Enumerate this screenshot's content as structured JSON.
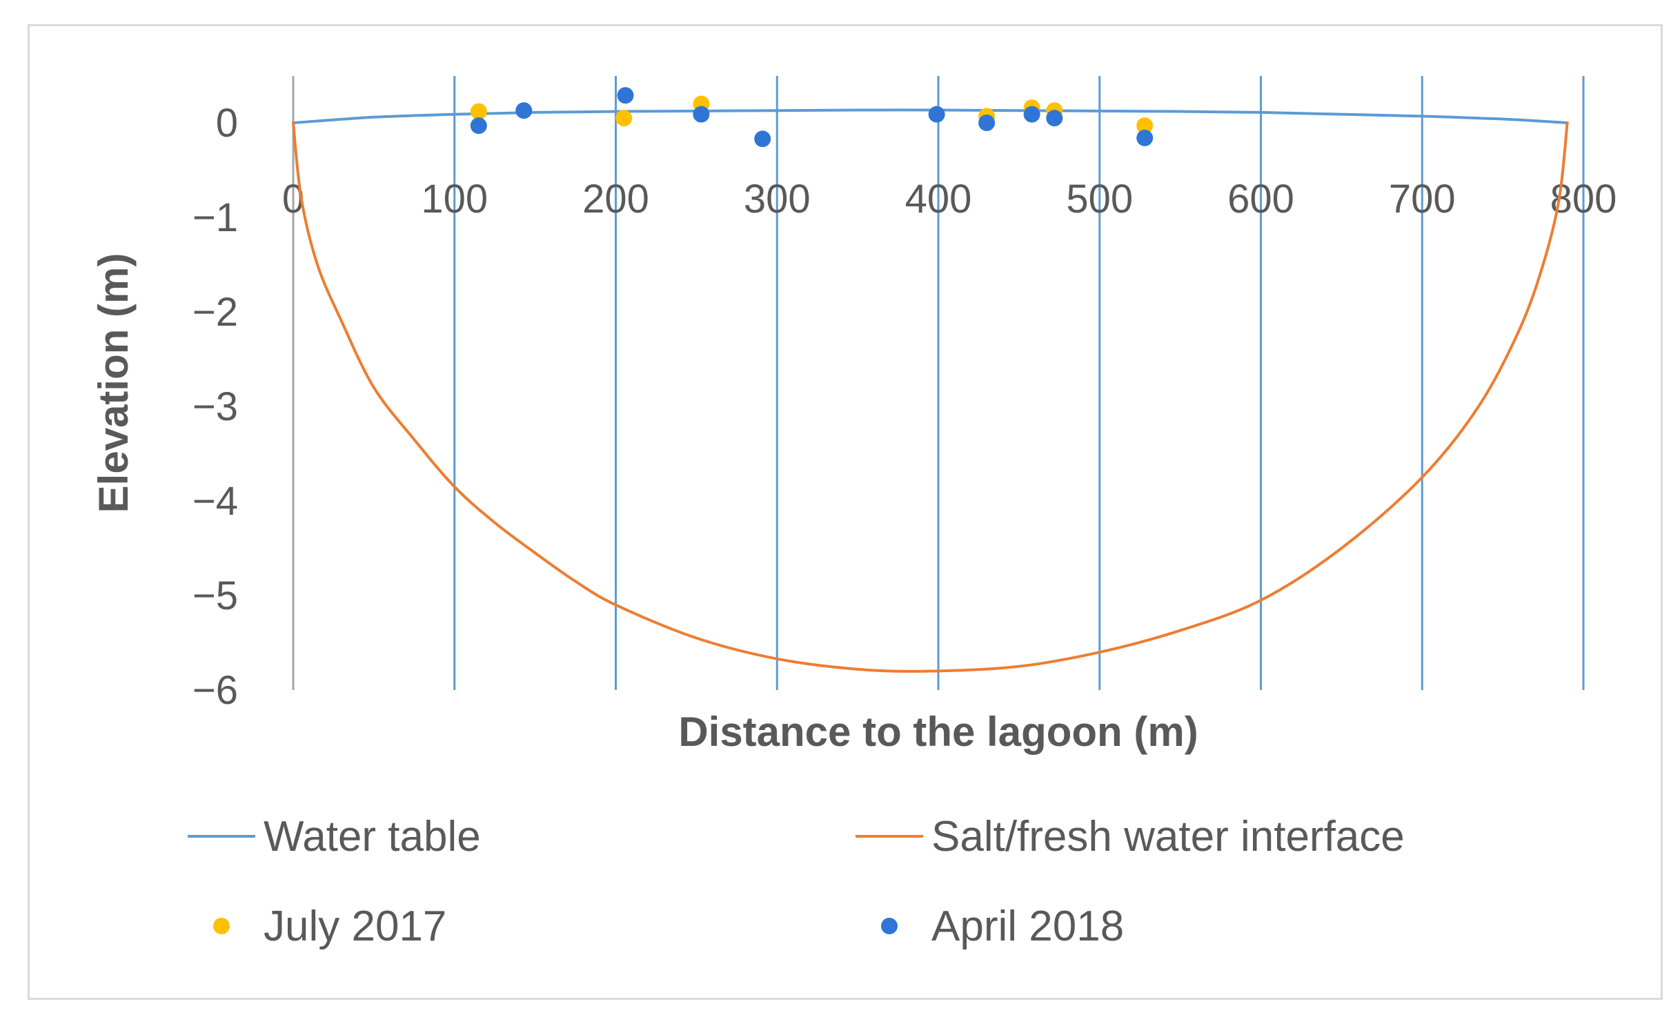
{
  "chart_data": {
    "type": "scatter",
    "title": "",
    "xlabel": "Distance to the lagoon (m)",
    "ylabel": "Elevation (m)",
    "xlim": [
      0,
      800
    ],
    "ylim": [
      -6,
      0.5
    ],
    "x_ticks": [
      0,
      100,
      200,
      300,
      400,
      500,
      600,
      700,
      800
    ],
    "y_ticks": [
      0,
      -1,
      -2,
      -3,
      -4,
      -5,
      -6
    ],
    "x_tick_labels": [
      "0",
      "100",
      "200",
      "300",
      "400",
      "500",
      "600",
      "700",
      "800"
    ],
    "y_tick_labels": [
      "0",
      "−1",
      "−2",
      "−3",
      "−4",
      "−5",
      "−6"
    ],
    "grid": "vertical",
    "legend_position": "bottom",
    "series": [
      {
        "name": "Water table",
        "kind": "line",
        "color": "#5b9bd5",
        "x": [
          0,
          50,
          100,
          150,
          200,
          250,
          300,
          350,
          400,
          450,
          500,
          550,
          600,
          650,
          700,
          750,
          790
        ],
        "y": [
          0,
          0.06,
          0.09,
          0.11,
          0.12,
          0.125,
          0.13,
          0.135,
          0.135,
          0.13,
          0.125,
          0.12,
          0.11,
          0.09,
          0.07,
          0.04,
          0
        ]
      },
      {
        "name": "Salt/fresh water interface",
        "kind": "line",
        "color": "#ed7d31",
        "x": [
          0,
          5,
          15,
          30,
          50,
          75,
          100,
          125,
          150,
          175,
          200,
          250,
          300,
          350,
          395,
          450,
          500,
          550,
          600,
          650,
          700,
          735,
          760,
          775,
          785,
          790
        ],
        "y": [
          0,
          -0.8,
          -1.5,
          -2.1,
          -2.8,
          -3.35,
          -3.85,
          -4.23,
          -4.55,
          -4.85,
          -5.1,
          -5.45,
          -5.67,
          -5.78,
          -5.8,
          -5.75,
          -5.6,
          -5.37,
          -5.05,
          -4.5,
          -3.75,
          -3.0,
          -2.2,
          -1.5,
          -0.8,
          0
        ]
      },
      {
        "name": "July 2017",
        "kind": "scatter",
        "color": "#ffc000",
        "x": [
          115,
          205,
          253,
          430,
          458,
          472,
          528
        ],
        "y": [
          0.12,
          0.05,
          0.2,
          0.07,
          0.16,
          0.13,
          -0.03
        ]
      },
      {
        "name": "April 2018",
        "kind": "scatter",
        "color": "#2e75d6",
        "x": [
          115,
          143,
          206,
          253,
          291,
          399,
          430,
          458,
          472,
          528
        ],
        "y": [
          -0.03,
          0.13,
          0.29,
          0.09,
          -0.17,
          0.09,
          0.0,
          0.09,
          0.05,
          -0.16
        ]
      }
    ]
  },
  "colors": {
    "grid": "#5b9bd5",
    "y_axis_line": "#a6a6a6",
    "frame_border": "#d9d9d9",
    "text": "#595959"
  }
}
